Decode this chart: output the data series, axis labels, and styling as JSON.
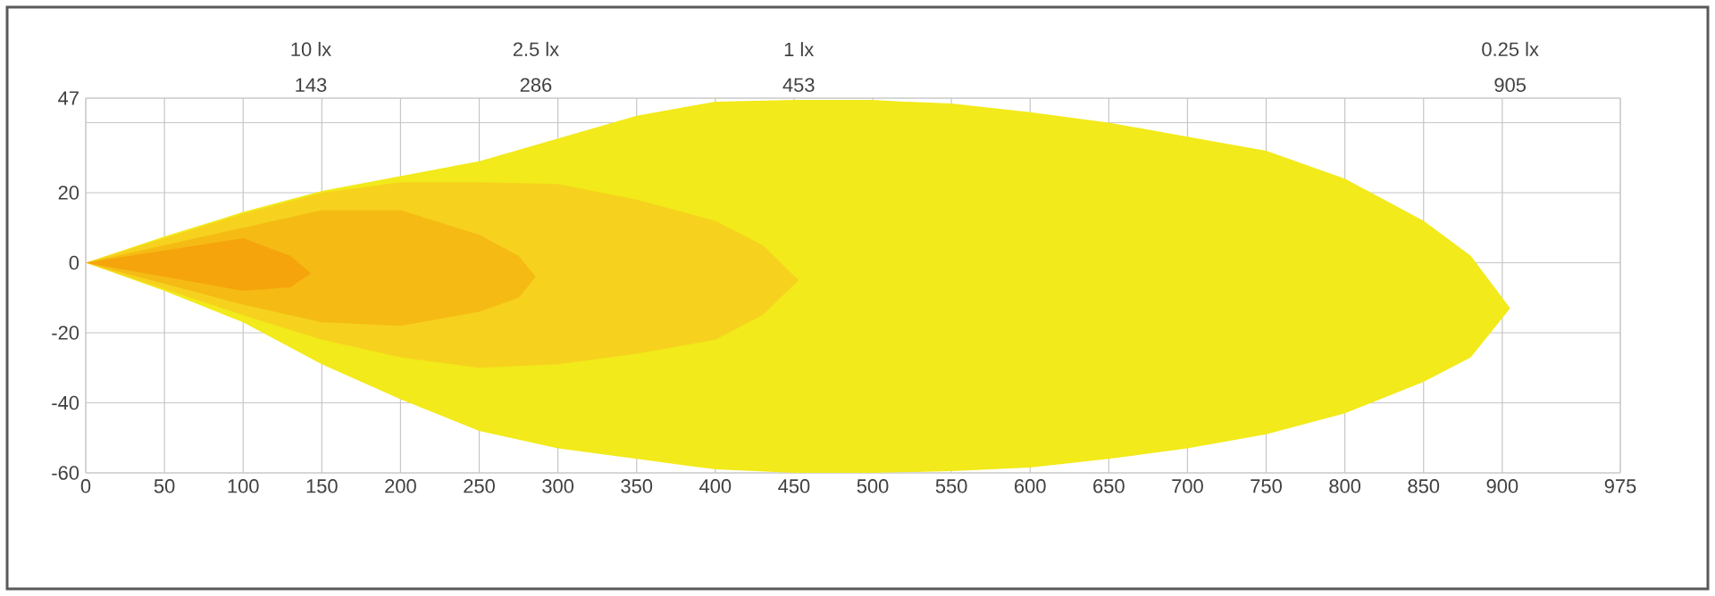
{
  "chart_data": {
    "type": "area",
    "xlim": [
      0,
      975
    ],
    "ylim": [
      -60,
      47
    ],
    "xticks": [
      0,
      50,
      100,
      150,
      200,
      250,
      300,
      350,
      400,
      450,
      500,
      550,
      600,
      650,
      700,
      750,
      800,
      850,
      900,
      975
    ],
    "yticks": [
      -60,
      -40,
      -20,
      0,
      20,
      {
        "value": 40,
        "label": null
      },
      47
    ],
    "x2lim": [
      0,
      975
    ],
    "x2ticks": [
      143,
      286,
      453,
      905
    ],
    "annotations": [
      "10 lx",
      "2.5 lx",
      "1 lx",
      "0.25 lx"
    ],
    "grid": true,
    "series": [
      {
        "color": "#f2ea1a",
        "x": [
          0,
          50,
          100,
          150,
          250,
          350,
          400,
          450,
          500,
          520,
          550,
          600,
          650,
          700,
          750,
          800,
          850,
          880,
          905,
          880,
          850,
          800,
          750,
          700,
          650,
          600,
          550,
          500,
          450,
          400,
          350,
          300,
          250,
          200,
          150,
          100,
          50,
          0
        ],
        "values": [
          0,
          7.5,
          14.5,
          20.5,
          29,
          42,
          46,
          46.5,
          46.5,
          46,
          45.5,
          43,
          40,
          36,
          32,
          24,
          12,
          2,
          -13,
          -27,
          -34,
          -43,
          -49,
          -53,
          -56,
          -58.5,
          -59.5,
          -60,
          -60,
          -59,
          -56,
          -53,
          -48,
          -39,
          -29,
          -17,
          -8,
          0
        ]
      },
      {
        "color": "#f6d21e",
        "x": [
          0,
          100,
          150,
          200,
          250,
          300,
          350,
          400,
          430,
          453,
          430,
          400,
          350,
          300,
          250,
          200,
          150,
          100,
          0
        ],
        "values": [
          0,
          14,
          20,
          23,
          23,
          22.5,
          18,
          12,
          5,
          -5,
          -15,
          -22,
          -26,
          -29,
          -30,
          -27,
          -22,
          -15,
          0
        ]
      },
      {
        "color": "#f5bb14",
        "x": [
          0,
          100,
          150,
          200,
          250,
          275,
          286,
          275,
          250,
          200,
          150,
          100,
          0
        ],
        "values": [
          0,
          10,
          15,
          15,
          8,
          2,
          -4,
          -10,
          -14,
          -18,
          -17,
          -12,
          0
        ]
      },
      {
        "color": "#f5a40c",
        "x": [
          0,
          100,
          130,
          143,
          130,
          100,
          0
        ],
        "values": [
          0,
          7,
          2,
          -3,
          -7,
          -8,
          0
        ]
      }
    ]
  }
}
